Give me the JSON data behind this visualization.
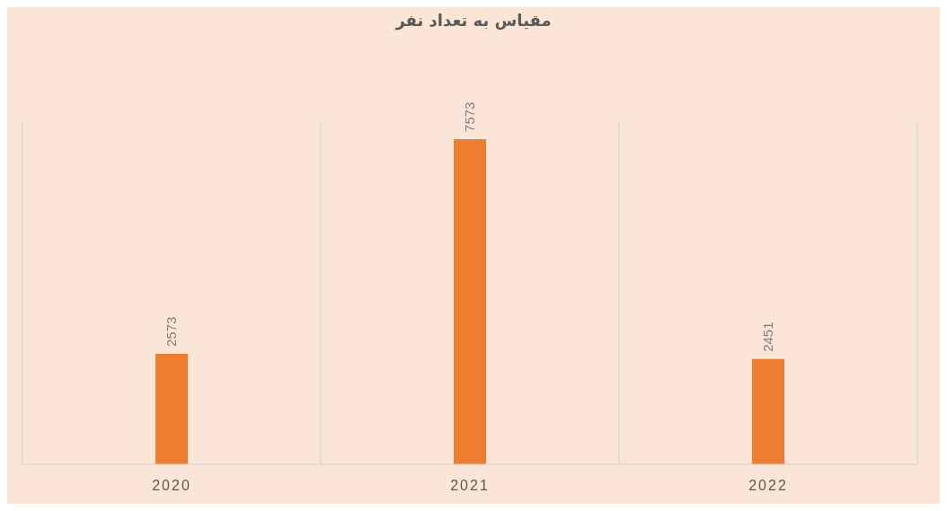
{
  "chart_data": {
    "type": "bar",
    "title": "مقیاس به تعداد نفر",
    "categories": [
      "2020",
      "2021",
      "2022"
    ],
    "values": [
      2573,
      7573,
      2451
    ],
    "color": "#ed7d31",
    "data_labels": true,
    "grid": "x"
  }
}
